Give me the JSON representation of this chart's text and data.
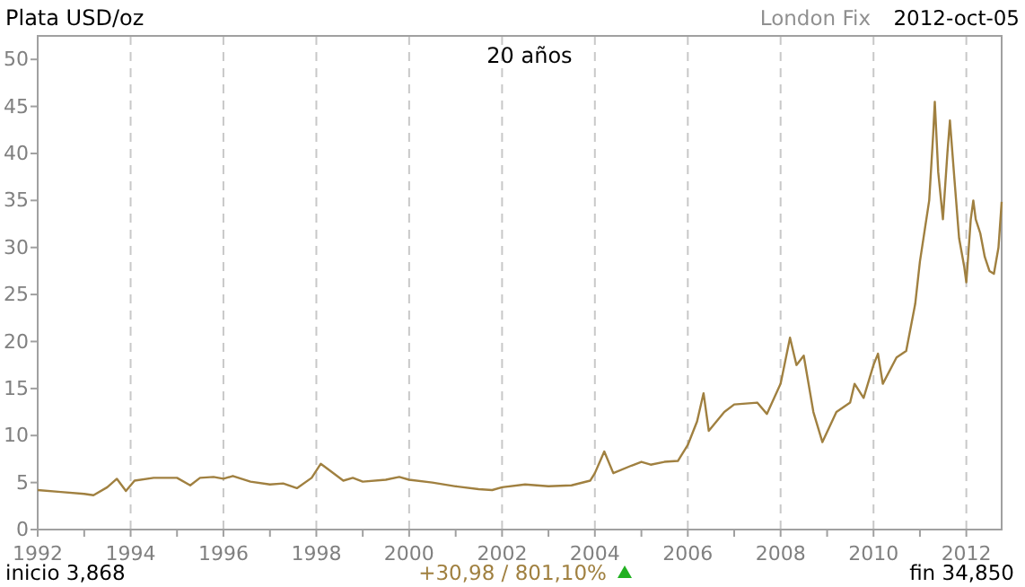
{
  "chart_data": {
    "type": "line",
    "title": "Plata USD/oz",
    "subtitle": "20 años",
    "annotations": [
      "London Fix",
      "2012-oct-05",
      "inicio 3,868",
      "+30,98 / 801,10%",
      "fin 34,850"
    ],
    "x": [
      "1992-01-01",
      "1992-07-01",
      "1993-01-01",
      "1993-03-15",
      "1993-07-01",
      "1993-09-15",
      "1993-11-25",
      "1994-02-01",
      "1994-07-01",
      "1995-01-01",
      "1995-04-15",
      "1995-07-01",
      "1995-10-15",
      "1996-01-01",
      "1996-03-15",
      "1996-08-01",
      "1997-01-01",
      "1997-04-15",
      "1997-08-01",
      "1997-11-25",
      "1998-02-05",
      "1998-04-15",
      "1998-08-01",
      "1998-10-15",
      "1999-01-01",
      "1999-07-01",
      "1999-10-15",
      "2000-01-01",
      "2000-07-01",
      "2001-01-01",
      "2001-07-01",
      "2001-10-15",
      "2002-01-01",
      "2002-07-01",
      "2003-01-01",
      "2003-07-01",
      "2003-11-25",
      "2004-01-01",
      "2004-03-15",
      "2004-05-25",
      "2004-10-15",
      "2005-01-01",
      "2005-03-15",
      "2005-07-01",
      "2005-10-15",
      "2006-01-01",
      "2006-03-15",
      "2006-05-05",
      "2006-06-15",
      "2006-10-15",
      "2007-01-01",
      "2007-07-01",
      "2007-09-15",
      "2008-01-01",
      "2008-03-15",
      "2008-05-05",
      "2008-07-01",
      "2008-09-15",
      "2008-11-25",
      "2009-03-15",
      "2009-07-01",
      "2009-08-05",
      "2009-10-15",
      "2010-01-01",
      "2010-02-05",
      "2010-03-15",
      "2010-07-01",
      "2010-09-15",
      "2010-11-25",
      "2011-01-01",
      "2011-03-15",
      "2011-04-15",
      "2011-04-28",
      "2011-05-25",
      "2011-07-01",
      "2011-08-05",
      "2011-08-25",
      "2011-10-01",
      "2011-11-05",
      "2011-12-15",
      "2012-01-01",
      "2012-02-05",
      "2012-02-25",
      "2012-03-15",
      "2012-04-20",
      "2012-05-25",
      "2012-07-01",
      "2012-08-05",
      "2012-09-10",
      "2012-10-05"
    ],
    "values": [
      4.2,
      4.0,
      3.8,
      3.65,
      4.5,
      5.4,
      4.1,
      5.2,
      5.5,
      5.5,
      4.7,
      5.5,
      5.6,
      5.4,
      5.7,
      5.1,
      4.8,
      4.9,
      4.4,
      5.5,
      7.0,
      6.3,
      5.2,
      5.5,
      5.1,
      5.3,
      5.6,
      5.3,
      5.0,
      4.6,
      4.3,
      4.2,
      4.5,
      4.8,
      4.6,
      4.7,
      5.2,
      6.0,
      8.3,
      6.0,
      6.8,
      7.2,
      6.9,
      7.2,
      7.3,
      9.0,
      11.5,
      14.5,
      10.5,
      12.5,
      13.3,
      13.5,
      12.3,
      15.5,
      20.4,
      17.5,
      18.5,
      12.5,
      9.3,
      12.5,
      13.5,
      15.5,
      14.0,
      17.5,
      18.7,
      15.5,
      18.3,
      19.0,
      24.0,
      28.5,
      35.0,
      42.0,
      45.5,
      38.0,
      33.0,
      40.0,
      43.5,
      37.0,
      31.0,
      28.0,
      26.3,
      33.0,
      35.0,
      33.0,
      31.5,
      29.0,
      27.5,
      27.2,
      30.0,
      34.85
    ],
    "color": "#a08040",
    "xlim": [
      "1992-01-01",
      "2012-10-05"
    ],
    "xticks": [
      {
        "value": "1992-01-01",
        "label": "1992"
      },
      {
        "value": "1993-01-01",
        "label": null
      },
      {
        "value": "1994-01-01",
        "label": "1994"
      },
      {
        "value": "1995-01-01",
        "label": null
      },
      {
        "value": "1996-01-01",
        "label": "1996"
      },
      {
        "value": "1997-01-01",
        "label": null
      },
      {
        "value": "1998-01-01",
        "label": "1998"
      },
      {
        "value": "1999-01-01",
        "label": null
      },
      {
        "value": "2000-01-01",
        "label": "2000"
      },
      {
        "value": "2001-01-01",
        "label": null
      },
      {
        "value": "2002-01-01",
        "label": "2002"
      },
      {
        "value": "2003-01-01",
        "label": null
      },
      {
        "value": "2004-01-01",
        "label": "2004"
      },
      {
        "value": "2005-01-01",
        "label": null
      },
      {
        "value": "2006-01-01",
        "label": "2006"
      },
      {
        "value": "2007-01-01",
        "label": null
      },
      {
        "value": "2008-01-01",
        "label": "2008"
      },
      {
        "value": "2009-01-01",
        "label": null
      },
      {
        "value": "2010-01-01",
        "label": "2010"
      },
      {
        "value": "2011-01-01",
        "label": null
      },
      {
        "value": "2012-01-01",
        "label": "2012"
      }
    ],
    "ylim": [
      0,
      52.5
    ],
    "yticks": [
      0,
      5,
      10,
      15,
      20,
      25,
      30,
      35,
      40,
      45,
      50
    ],
    "grid": "x",
    "line_style": "solid",
    "marker": "none"
  }
}
